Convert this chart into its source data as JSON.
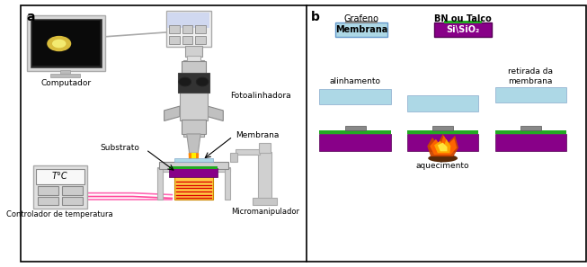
{
  "fig_width": 6.53,
  "fig_height": 2.97,
  "bg_color": "#ffffff",
  "panel_a_label": "a",
  "panel_b_label": "b",
  "grafeno_label": "Grafeno",
  "bn_talco_label": "BN ou Talco",
  "membrana_label": "Membrana",
  "si_sio2_label": "Si\\SiO₂",
  "alinhamento_label": "alinhamento",
  "retirada_label": "retirada da\nmembrana",
  "aquecimento_label": "aquecimento",
  "computador_label": "Computador",
  "fotoalinhadora_label": "Fotoalinhadora",
  "membrana_arrow_label": "Membrana",
  "substrato_label": "Substrato",
  "controlador_label": "Controlador de temperatura",
  "micromanipulador_label": "Micromanipulador",
  "membrana_box_color": "#add8e6",
  "si_sio2_color": "#800080",
  "green_strip_color": "#228B22",
  "monitor_bg": "#111111",
  "silver": "#c8c8c8",
  "light_gray": "#e0e0e0",
  "dark_gray": "#666666",
  "orange_beam": "#ff8800",
  "yellow_beam": "#ffee00",
  "pink_wire": "#ff69b4"
}
